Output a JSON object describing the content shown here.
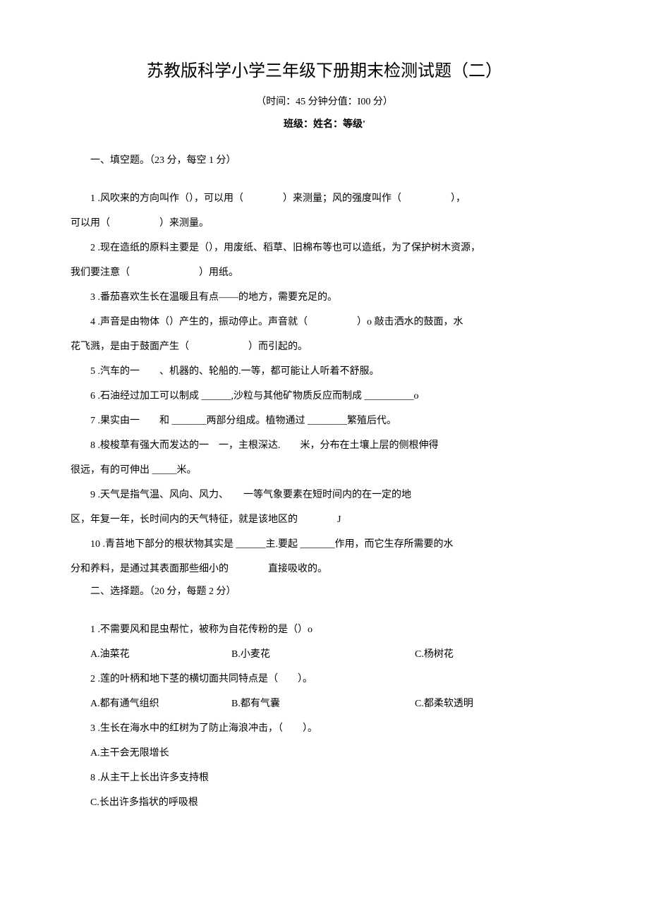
{
  "title": "苏教版科学小学三年级下册期末检测试题（二）",
  "subtitle": "（时间：45 分钟分值：I00 分）",
  "classInfo": "班级：姓名：等级'",
  "section1": {
    "header": "一、填空题。（23 分，每空 1 分）",
    "q1_line1": "1 .风吹来的方向叫作（），可以用（　　　　）来测量；风的强度叫作（　　　　　），",
    "q1_line2": "可以用（　　　　　）来测量。",
    "q2_line1": "2 .现在造纸的原料主要是（），用废纸、稻草、旧棉布等也可以造纸，为了保护树木资源，",
    "q2_line2": "我们要注意（　　　　　　　）用纸。",
    "q3": "3 .番茄喜欢生长在温暖且有点——的地方，需要充足的。",
    "q4_line1": "4 .声音是由物体（）产生的，振动停止。声音就（　　　　　）o 敲击洒水的鼓面，水",
    "q4_line2": "花飞溅，是由于鼓面产生（　　　　　　）而引起的。",
    "q5": "5 .汽车的一　　、机器的、轮船的.一等，都可能让人听着不舒服。",
    "q6": "6 .石油经过加工可以制成 ______,沙粒与其他矿物质反应而制成 __________o",
    "q7": "7 .果实由一　　和 _______两部分组成。植物通过 ________繁殖后代。",
    "q8_line1": "8 .梭梭草有强大而发达的一　一，主根深达.　　米，分布在土壤上层的侧根伸得",
    "q8_line2": "很远，有的可伸出 _____米。",
    "q9_line1": "9 .天气是指气温、风向、风力、　　一等气象要素在短时间内的在一定的地",
    "q9_line2": "区，年复一年，长时间内的天气特征，就是该地区的　　　　J",
    "q10_line1": "10 .青苔地下部分的根状物其实是 ______主.要起 _______作用，而它生存所需要的水",
    "q10_line2": "分和养料，是通过其表面那些细小的　　　　直接吸收的。"
  },
  "section2": {
    "header": "二、选择题。（20 分，每题 2 分）",
    "q1": "1 .不需要风和昆虫帮忙，被称为自花传粉的是（）o",
    "q1_optA": "A.油菜花",
    "q1_optB": "B.小麦花",
    "q1_optC": "C.杨树花",
    "q2": "2 .莲的叶柄和地下茎的横切面共同特点是（　　）。",
    "q2_optA": "A.都有通气组织",
    "q2_optB": "B.都有气囊",
    "q2_optC": "C.都柔软透明",
    "q3": "3 .生长在海水中的红树为了防止海浪冲击，（　　）。",
    "q3_optA": "A.主干会无限增长",
    "q3_optB": "8 .从主干上长出许多支持根",
    "q3_optC": "C.长出许多指状的呼吸根"
  }
}
